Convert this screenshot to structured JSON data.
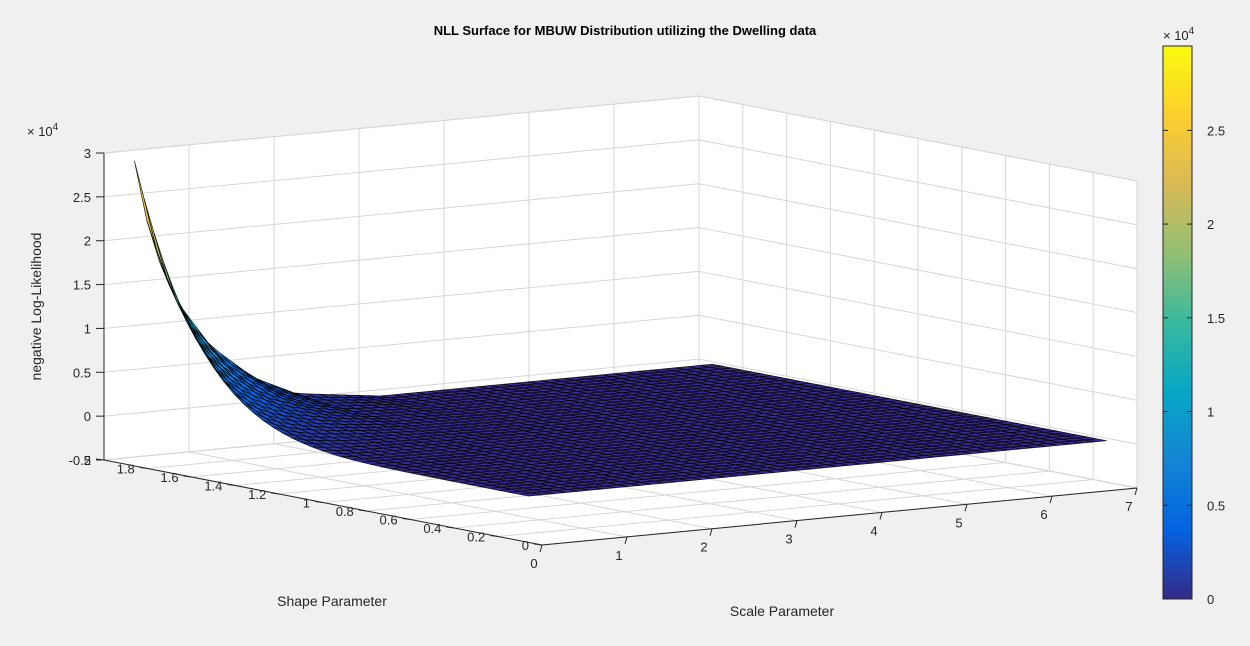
{
  "chart_data": {
    "type": "surface",
    "title": "NLL Surface for MBUW Distribution utilizing the Dwelling data",
    "xlabel": "Scale Parameter",
    "ylabel": "Shape Parameter",
    "zlabel": "negative Log-Likelihood",
    "z_exponent_label": "× 10",
    "z_exponent_power": "4",
    "colorbar_exponent_label": "× 10",
    "colorbar_exponent_power": "4",
    "xlim": [
      0,
      7
    ],
    "ylim": [
      0,
      2
    ],
    "zlim": [
      -5000,
      30000
    ],
    "xticks": [
      "0",
      "1",
      "2",
      "3",
      "4",
      "5",
      "6",
      "7"
    ],
    "yticks": [
      "0",
      "0.2",
      "0.4",
      "0.6",
      "0.8",
      "1",
      "1.2",
      "1.4",
      "1.6",
      "1.8",
      "2"
    ],
    "zticks": [
      "-0.5",
      "0",
      "0.5",
      "1",
      "1.5",
      "2",
      "2.5",
      "3"
    ],
    "colorbar_ticks": [
      "0",
      "0.5",
      "1",
      "1.5",
      "2",
      "2.5"
    ],
    "colorbar_range": [
      0,
      29500
    ],
    "colormap": "parula",
    "grid": true,
    "surface_x_range": [
      0.1,
      6.9
    ],
    "surface_y_range": [
      0.1,
      1.9
    ],
    "surface_corner_values": [
      {
        "x": 0.1,
        "y": 1.9,
        "z": 29500
      },
      {
        "x": 0.1,
        "y": 0.1,
        "z": 0
      },
      {
        "x": 6.9,
        "y": 1.9,
        "z": 0
      },
      {
        "x": 6.9,
        "y": 0.1,
        "z": 0
      }
    ],
    "surface_edge_profile_at_y_max": [
      {
        "x": 0.1,
        "z": 29500
      },
      {
        "x": 0.3,
        "z": 20000
      },
      {
        "x": 0.6,
        "z": 13000
      },
      {
        "x": 1.0,
        "z": 7500
      },
      {
        "x": 1.5,
        "z": 3500
      },
      {
        "x": 2.0,
        "z": 1200
      },
      {
        "x": 3.0,
        "z": 0
      }
    ]
  }
}
